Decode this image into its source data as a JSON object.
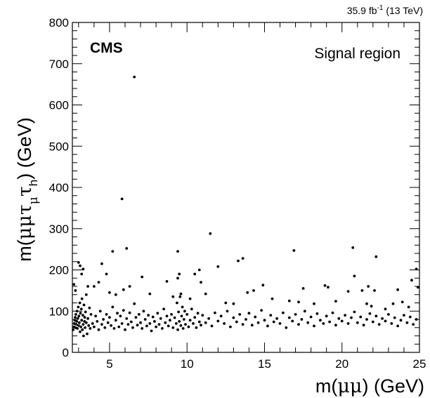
{
  "chart_data": {
    "type": "scatter",
    "title": "",
    "experiment_label": "CMS",
    "region_label": "Signal region",
    "lumi_label": {
      "value": "35.9 fb",
      "exponent": "-1",
      "energy": " (13 TeV)"
    },
    "xlabel": {
      "main": "m(",
      "sym": "μμ",
      "end": ") (GeV)"
    },
    "ylabel": {
      "main": "m(",
      "sym": "μμτ",
      "sub1": "μ",
      "tau": "τ",
      "sub2": "h",
      "end": ") (GeV)"
    },
    "xlim": [
      2.6,
      25
    ],
    "ylim": [
      0,
      800
    ],
    "xticks": [
      "5",
      "10",
      "15",
      "20",
      "25"
    ],
    "yticks": [
      "0",
      "100",
      "200",
      "300",
      "400",
      "500",
      "600",
      "700",
      "800"
    ],
    "grid": false,
    "colors": {
      "points": "#000000",
      "axes": "#000000",
      "background": "#ffffff"
    },
    "series": [
      {
        "points": [
          [
            6.6,
            668
          ],
          [
            5.8,
            372
          ],
          [
            5.2,
            245
          ],
          [
            6.1,
            252
          ],
          [
            9.4,
            245
          ],
          [
            11.5,
            288
          ],
          [
            13.3,
            222
          ],
          [
            13.6,
            228
          ],
          [
            16.9,
            247
          ],
          [
            20.7,
            254
          ],
          [
            22.2,
            232
          ],
          [
            3.0,
            218
          ],
          [
            3.1,
            210
          ],
          [
            3.3,
            202
          ],
          [
            3.2,
            190
          ],
          [
            4.0,
            160
          ],
          [
            4.3,
            170
          ],
          [
            4.5,
            215
          ],
          [
            4.8,
            190
          ],
          [
            5.9,
            152
          ],
          [
            6.3,
            160
          ],
          [
            7.1,
            183
          ],
          [
            8.7,
            172
          ],
          [
            9.5,
            190
          ],
          [
            9.4,
            180
          ],
          [
            10.8,
            200
          ],
          [
            10.5,
            190
          ],
          [
            10.9,
            170
          ],
          [
            12.0,
            208
          ],
          [
            13.9,
            145
          ],
          [
            14.3,
            150
          ],
          [
            14.9,
            163
          ],
          [
            15.5,
            130
          ],
          [
            16.6,
            125
          ],
          [
            17.5,
            155
          ],
          [
            18.9,
            162
          ],
          [
            19.1,
            158
          ],
          [
            20.4,
            148
          ],
          [
            20.8,
            185
          ],
          [
            21.3,
            150
          ],
          [
            21.7,
            160
          ],
          [
            22.1,
            150
          ],
          [
            23.6,
            152
          ],
          [
            24.5,
            175
          ],
          [
            24.8,
            202
          ],
          [
            24.9,
            158
          ],
          [
            2.8,
            150
          ],
          [
            2.7,
            165
          ],
          [
            3.5,
            140
          ],
          [
            3.6,
            160
          ],
          [
            5.0,
            145
          ],
          [
            5.4,
            140
          ],
          [
            7.6,
            142
          ],
          [
            9.1,
            135
          ],
          [
            9.6,
            142
          ],
          [
            10.2,
            130
          ],
          [
            11.2,
            142
          ],
          [
            12.5,
            120
          ],
          [
            13.0,
            118
          ],
          [
            17.2,
            122
          ],
          [
            18.2,
            118
          ],
          [
            19.6,
            124
          ],
          [
            21.6,
            118
          ],
          [
            21.9,
            112
          ],
          [
            22.8,
            105
          ],
          [
            23.3,
            118
          ],
          [
            23.9,
            122
          ],
          [
            24.3,
            110
          ]
        ],
        "band": [
          [
            2.65,
            55
          ],
          [
            2.7,
            62
          ],
          [
            2.72,
            70
          ],
          [
            2.75,
            78
          ],
          [
            2.78,
            85
          ],
          [
            2.8,
            60
          ],
          [
            2.82,
            92
          ],
          [
            2.85,
            68
          ],
          [
            2.88,
            75
          ],
          [
            2.9,
            100
          ],
          [
            2.92,
            58
          ],
          [
            2.95,
            82
          ],
          [
            2.98,
            110
          ],
          [
            3.0,
            65
          ],
          [
            3.02,
            88
          ],
          [
            3.05,
            72
          ],
          [
            3.08,
            120
          ],
          [
            3.1,
            50
          ],
          [
            3.12,
            95
          ],
          [
            3.15,
            62
          ],
          [
            3.18,
            105
          ],
          [
            3.2,
            78
          ],
          [
            3.22,
            130
          ],
          [
            3.25,
            55
          ],
          [
            3.28,
            90
          ],
          [
            3.3,
            68
          ],
          [
            3.32,
            40
          ],
          [
            3.35,
            115
          ],
          [
            3.38,
            75
          ],
          [
            3.4,
            85
          ],
          [
            3.42,
            60
          ],
          [
            3.45,
            98
          ],
          [
            3.5,
            72
          ],
          [
            3.55,
            45
          ],
          [
            3.6,
            82
          ],
          [
            3.65,
            65
          ],
          [
            3.7,
            108
          ],
          [
            3.75,
            58
          ],
          [
            3.8,
            92
          ],
          [
            3.9,
            70
          ],
          [
            4.0,
            62
          ],
          [
            4.1,
            88
          ],
          [
            4.2,
            75
          ],
          [
            4.3,
            55
          ],
          [
            4.4,
            100
          ],
          [
            4.5,
            68
          ],
          [
            4.6,
            80
          ],
          [
            4.7,
            60
          ],
          [
            4.8,
            92
          ],
          [
            4.9,
            72
          ],
          [
            5.0,
            85
          ],
          [
            5.1,
            65
          ],
          [
            5.2,
            110
          ],
          [
            5.3,
            58
          ],
          [
            5.4,
            78
          ],
          [
            5.5,
            95
          ],
          [
            5.6,
            62
          ],
          [
            5.7,
            88
          ],
          [
            5.8,
            70
          ],
          [
            5.9,
            102
          ],
          [
            6.0,
            55
          ],
          [
            6.1,
            82
          ],
          [
            6.2,
            68
          ],
          [
            6.3,
            96
          ],
          [
            6.4,
            74
          ],
          [
            6.5,
            60
          ],
          [
            6.6,
            118
          ],
          [
            6.7,
            85
          ],
          [
            6.8,
            66
          ],
          [
            6.9,
            92
          ],
          [
            7.0,
            72
          ],
          [
            7.1,
            58
          ],
          [
            7.2,
            100
          ],
          [
            7.3,
            80
          ],
          [
            7.4,
            64
          ],
          [
            7.5,
            90
          ],
          [
            7.6,
            70
          ],
          [
            7.7,
            52
          ],
          [
            7.8,
            86
          ],
          [
            7.9,
            75
          ],
          [
            8.0,
            62
          ],
          [
            8.1,
            95
          ],
          [
            8.2,
            68
          ],
          [
            8.3,
            82
          ],
          [
            8.4,
            58
          ],
          [
            8.5,
            105
          ],
          [
            8.6,
            72
          ],
          [
            8.7,
            88
          ],
          [
            8.8,
            64
          ],
          [
            8.9,
            78
          ],
          [
            9.0,
            92
          ],
          [
            9.1,
            60
          ],
          [
            9.2,
            84
          ],
          [
            9.3,
            70
          ],
          [
            9.35,
            120
          ],
          [
            9.4,
            55
          ],
          [
            9.45,
            98
          ],
          [
            9.5,
            75
          ],
          [
            9.55,
            135
          ],
          [
            9.6,
            65
          ],
          [
            9.65,
            88
          ],
          [
            9.7,
            110
          ],
          [
            9.75,
            58
          ],
          [
            9.8,
            80
          ],
          [
            9.85,
            100
          ],
          [
            9.9,
            68
          ],
          [
            10.0,
            92
          ],
          [
            10.1,
            62
          ],
          [
            10.2,
            78
          ],
          [
            10.3,
            105
          ],
          [
            10.4,
            70
          ],
          [
            10.5,
            85
          ],
          [
            10.6,
            60
          ],
          [
            10.7,
            95
          ],
          [
            10.8,
            74
          ],
          [
            10.9,
            66
          ],
          [
            11.0,
            90
          ],
          [
            11.2,
            72
          ],
          [
            11.4,
            82
          ],
          [
            11.6,
            64
          ],
          [
            11.8,
            96
          ],
          [
            12.0,
            76
          ],
          [
            12.2,
            88
          ],
          [
            12.4,
            70
          ],
          [
            12.6,
            100
          ],
          [
            12.8,
            62
          ],
          [
            13.0,
            84
          ],
          [
            13.2,
            74
          ],
          [
            13.4,
            92
          ],
          [
            13.6,
            68
          ],
          [
            13.8,
            80
          ],
          [
            14.0,
            95
          ],
          [
            14.2,
            66
          ],
          [
            14.4,
            86
          ],
          [
            14.6,
            72
          ],
          [
            14.8,
            102
          ],
          [
            15.0,
            78
          ],
          [
            15.2,
            64
          ],
          [
            15.4,
            90
          ],
          [
            15.6,
            74
          ],
          [
            15.8,
            82
          ],
          [
            16.0,
            70
          ],
          [
            16.2,
            96
          ],
          [
            16.4,
            60
          ],
          [
            16.6,
            84
          ],
          [
            16.8,
            76
          ],
          [
            17.0,
            92
          ],
          [
            17.2,
            68
          ],
          [
            17.4,
            80
          ],
          [
            17.6,
            100
          ],
          [
            17.8,
            72
          ],
          [
            18.0,
            86
          ],
          [
            18.2,
            64
          ],
          [
            18.4,
            94
          ],
          [
            18.6,
            78
          ],
          [
            18.8,
            70
          ],
          [
            19.0,
            88
          ],
          [
            19.2,
            74
          ],
          [
            19.4,
            96
          ],
          [
            19.6,
            66
          ],
          [
            19.8,
            82
          ],
          [
            20.0,
            76
          ],
          [
            20.2,
            90
          ],
          [
            20.4,
            70
          ],
          [
            20.6,
            84
          ],
          [
            20.8,
            98
          ],
          [
            21.0,
            72
          ],
          [
            21.2,
            86
          ],
          [
            21.4,
            66
          ],
          [
            21.6,
            80
          ],
          [
            21.8,
            94
          ],
          [
            22.0,
            74
          ],
          [
            22.2,
            88
          ],
          [
            22.4,
            68
          ],
          [
            22.6,
            82
          ],
          [
            22.8,
            76
          ],
          [
            23.0,
            92
          ],
          [
            23.2,
            70
          ],
          [
            23.4,
            84
          ],
          [
            23.6,
            64
          ],
          [
            23.8,
            78
          ],
          [
            24.0,
            90
          ],
          [
            24.2,
            72
          ],
          [
            24.4,
            86
          ],
          [
            24.6,
            68
          ],
          [
            24.8,
            80
          ]
        ]
      }
    ]
  }
}
